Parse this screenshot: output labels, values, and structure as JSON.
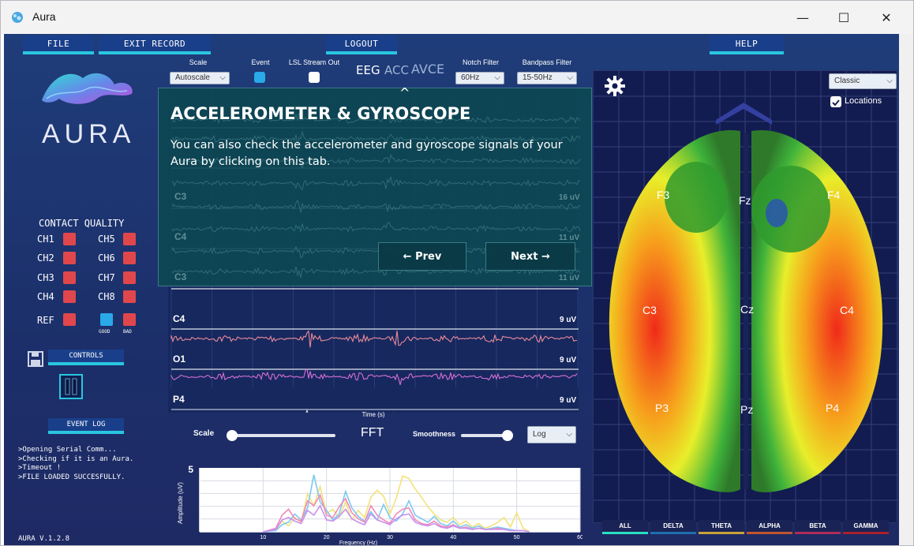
{
  "window": {
    "title": "Aura",
    "minimize": "—",
    "maximize": "☐",
    "close": "✕"
  },
  "menu": {
    "file": "FILE",
    "exit_record": "EXIT RECORD",
    "logout": "LOGOUT",
    "help": "HELP"
  },
  "brand": {
    "name": "AURA",
    "version": "AURA V.1.2.8"
  },
  "contact_quality": {
    "title": "CONTACT QUALITY",
    "channels": [
      "CH1",
      "CH2",
      "CH3",
      "CH4",
      "CH5",
      "CH6",
      "CH7",
      "CH8"
    ],
    "ref": "REF",
    "good": "GOOD",
    "bad": "BAD",
    "colors": {
      "bad": "#e0474c",
      "good": "#2aa9e8"
    }
  },
  "controls": {
    "label": "CONTROLS",
    "event_log": "EVENT LOG"
  },
  "event_log": [
    ">Opening Serial Comm...",
    ">Checking if it is an Aura.",
    ">Timeout !",
    ">FILE LOADED SUCCESFULLY."
  ],
  "toolbar": {
    "scale_label": "Scale",
    "scale_value": "Autoscale",
    "event_label": "Event",
    "lsl_label": "LSL Stream Out",
    "tabs": [
      "EEG",
      "ACC",
      "AVCE"
    ],
    "notch_label": "Notch Filter",
    "notch_value": "60Hz",
    "bandpass_label": "Bandpass Filter",
    "bandpass_value": "15-50Hz"
  },
  "eeg_channels": [
    {
      "name": "C4",
      "uv": "9 uV",
      "color": "#e88a9a"
    },
    {
      "name": "O1",
      "uv": "9 uV",
      "color": "#d56fd6"
    },
    {
      "name": "P4",
      "uv": "9 uV",
      "color": "#d9d9e6"
    }
  ],
  "hidden_channels": [
    {
      "name": "C3",
      "uv": "16 uV"
    },
    {
      "name": "C4",
      "uv": "11 uV"
    },
    {
      "name": "C3",
      "uv": "11 uV"
    }
  ],
  "time_axis_label": "Time (s)",
  "tooltip": {
    "title": "ACCELEROMETER & GYROSCOPE",
    "body": "You can also check the accelerometer and gyroscope signals of your Aura by clicking on this tab.",
    "caret": "^",
    "prev": "← Prev",
    "next": "Next →"
  },
  "fft": {
    "title": "FFT",
    "scale_label": "Scale",
    "smoothness_label": "Smoothness",
    "scale_mode": "Log"
  },
  "chart_data": {
    "type": "line",
    "xlabel": "Frequency (Hz)",
    "ylabel": "Amplitude (uV)",
    "xlim": [
      0,
      60
    ],
    "ylim": [
      0,
      5
    ],
    "x_ticks": [
      "10",
      "20",
      "30",
      "40",
      "50",
      "60"
    ],
    "y_ticks": [
      "5"
    ],
    "x": [
      10,
      12,
      13,
      14,
      15,
      16,
      17,
      18,
      19,
      20,
      21,
      22,
      23,
      24,
      25,
      26,
      27,
      28,
      29,
      30,
      31,
      32,
      33,
      34,
      35,
      36,
      37,
      38,
      39,
      40,
      41,
      42,
      43,
      44,
      45,
      46,
      47,
      48,
      49,
      50,
      51,
      52
    ],
    "series": [
      {
        "color": "#f4e27a",
        "values": [
          0,
          0.2,
          0.9,
          0.5,
          1.2,
          0.8,
          3.2,
          2.2,
          3.8,
          1.5,
          1.9,
          1.2,
          2.5,
          1.0,
          1.8,
          1.2,
          2.9,
          3.5,
          3.0,
          1.5,
          2.8,
          4.7,
          4.5,
          3.6,
          2.9,
          2.1,
          1.5,
          1.0,
          0.8,
          1.2,
          0.6,
          0.9,
          0.4,
          0.7,
          0.3,
          0.5,
          0.8,
          1.2,
          0.4,
          1.6,
          0.3,
          0
        ]
      },
      {
        "color": "#7cc8f0",
        "values": [
          0,
          0.1,
          0.6,
          0.8,
          1.5,
          1.0,
          2.0,
          4.8,
          2.5,
          1.8,
          1.0,
          1.5,
          3.4,
          2.0,
          1.3,
          0.9,
          1.7,
          1.0,
          2.3,
          1.2,
          0.9,
          1.5,
          2.6,
          1.4,
          1.1,
          0.8,
          1.3,
          0.7,
          0.5,
          0.9,
          0.4,
          0.6,
          0.3,
          0.5,
          0.2,
          0.3,
          0.4,
          0.3,
          0.2,
          0.1,
          0.1,
          0
        ]
      },
      {
        "color": "#f08ab8",
        "values": [
          0,
          0.3,
          1.4,
          1.9,
          1.1,
          0.9,
          2.6,
          2.2,
          3.1,
          1.4,
          1.2,
          2.1,
          2.8,
          1.6,
          1.1,
          0.8,
          2.2,
          1.4,
          1.0,
          0.7,
          1.5,
          1.9,
          2.0,
          1.0,
          0.7,
          0.6,
          0.9,
          0.5,
          0.4,
          0.6,
          0.3,
          0.4,
          0.2,
          0.3,
          0.2,
          0.2,
          0.3,
          0.2,
          0.1,
          0.1,
          0.1,
          0
        ]
      },
      {
        "color": "#c890f0",
        "values": [
          0,
          0.2,
          1.0,
          1.2,
          0.9,
          0.7,
          1.8,
          1.4,
          2.2,
          1.0,
          0.9,
          1.3,
          1.9,
          1.1,
          0.8,
          0.6,
          1.5,
          1.0,
          0.8,
          0.6,
          1.1,
          1.4,
          1.5,
          0.8,
          0.6,
          0.5,
          0.7,
          0.4,
          0.3,
          0.5,
          0.3,
          0.3,
          0.2,
          0.3,
          0.2,
          0.2,
          0.2,
          0.2,
          0.1,
          0.1,
          0.1,
          0
        ]
      }
    ],
    "grid": true
  },
  "brain": {
    "map_mode": "Classic",
    "locations_label": "Locations",
    "electrodes": [
      "F3",
      "Fz",
      "F4",
      "C3",
      "Cz",
      "C4",
      "P3",
      "Pz",
      "P4"
    ]
  },
  "bands": [
    {
      "label": "ALL",
      "color": "#29e0c0"
    },
    {
      "label": "DELTA",
      "color": "#1d6fb0"
    },
    {
      "label": "THETA",
      "color": "#c8a23a"
    },
    {
      "label": "ALPHA",
      "color": "#c0542e"
    },
    {
      "label": "BETA",
      "color": "#b02c58"
    },
    {
      "label": "GAMMA",
      "color": "#a8202c"
    }
  ],
  "icons": [
    "aura-app-icon",
    "gear-icon",
    "save-icon",
    "pause-icon",
    "chevron-up-icon",
    "checkbox-icon"
  ]
}
